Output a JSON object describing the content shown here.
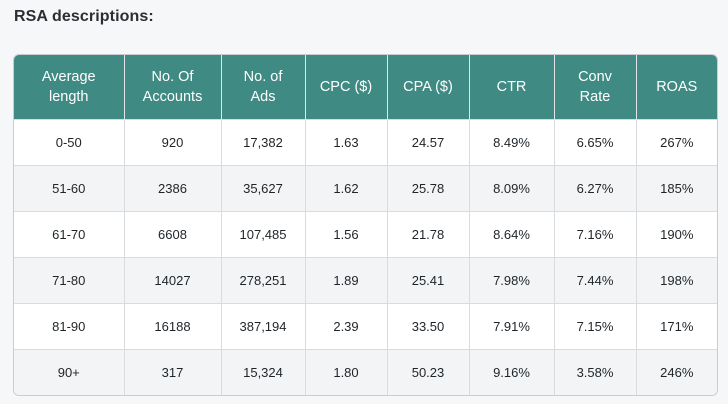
{
  "heading": "RSA descriptions:",
  "table": {
    "headers": [
      [
        "Average",
        "length"
      ],
      [
        "No. Of",
        "Accounts"
      ],
      [
        "No. of",
        "Ads"
      ],
      [
        "CPC ($)"
      ],
      [
        "CPA ($)"
      ],
      [
        "CTR"
      ],
      [
        "Conv",
        "Rate"
      ],
      [
        "ROAS"
      ]
    ],
    "rows": [
      [
        "0-50",
        "920",
        "17,382",
        "1.63",
        "24.57",
        "8.49%",
        "6.65%",
        "267%"
      ],
      [
        "51-60",
        "2386",
        "35,627",
        "1.62",
        "25.78",
        "8.09%",
        "6.27%",
        "185%"
      ],
      [
        "61-70",
        "6608",
        "107,485",
        "1.56",
        "21.78",
        "8.64%",
        "7.16%",
        "190%"
      ],
      [
        "71-80",
        "14027",
        "278,251",
        "1.89",
        "25.41",
        "7.98%",
        "7.44%",
        "198%"
      ],
      [
        "81-90",
        "16188",
        "387,194",
        "2.39",
        "33.50",
        "7.91%",
        "7.15%",
        "171%"
      ],
      [
        "90+",
        "317",
        "15,324",
        "1.80",
        "50.23",
        "9.16%",
        "3.58%",
        "246%"
      ]
    ]
  },
  "colors": {
    "header_bg": "#3f8a83",
    "header_text": "#ffffff",
    "row_alt_bg": "#f3f4f5",
    "border": "#d9dcdf"
  }
}
